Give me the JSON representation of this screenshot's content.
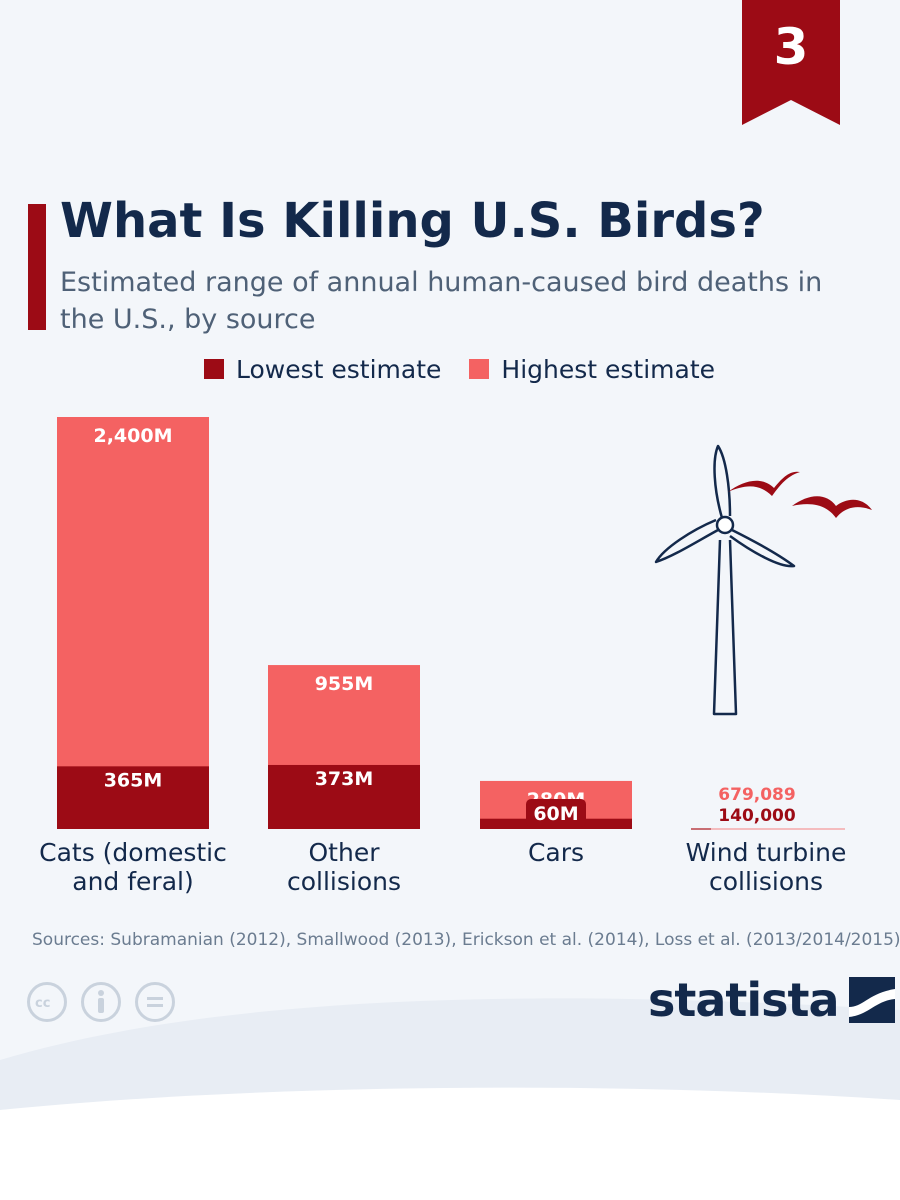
{
  "badge": {
    "number": "3"
  },
  "title": "What Is Killing U.S. Birds?",
  "subtitle": "Estimated range of annual human-caused bird deaths in the U.S., by source",
  "legend": {
    "low": {
      "label": "Lowest estimate",
      "color": "#9c0b15"
    },
    "high": {
      "label": "Highest estimate",
      "color": "#f46262"
    }
  },
  "chart_data": {
    "type": "bar",
    "categories": [
      "Cats (domestic and feral)",
      "Other collisions",
      "Cars",
      "Wind turbine collisions"
    ],
    "series": [
      {
        "name": "Lowest estimate",
        "values": [
          365000000,
          373000000,
          60000000,
          140000
        ],
        "labels": [
          "365M",
          "373M",
          "60M",
          "140,000"
        ],
        "color": "#9c0b15"
      },
      {
        "name": "Highest estimate",
        "values": [
          2400000000,
          955000000,
          280000000,
          679089
        ],
        "labels": [
          "2,400M",
          "955M",
          "280M",
          "679,089"
        ],
        "color": "#f46262"
      }
    ],
    "title": "What Is Killing U.S. Birds?",
    "grid": false
  },
  "category_labels": {
    "cats": "Cats (domestic and feral)",
    "other": "Other collisions",
    "cars": "Cars",
    "wind": "Wind turbine collisions"
  },
  "source": "Sources: Subramanian (2012), Smallwood (2013), Erickson et al. (2014), Loss et al. (2013/2014/2015)",
  "license_icons": [
    "cc-icon",
    "attribution-icon",
    "no-derivatives-icon"
  ],
  "logo": {
    "text": "statista"
  }
}
